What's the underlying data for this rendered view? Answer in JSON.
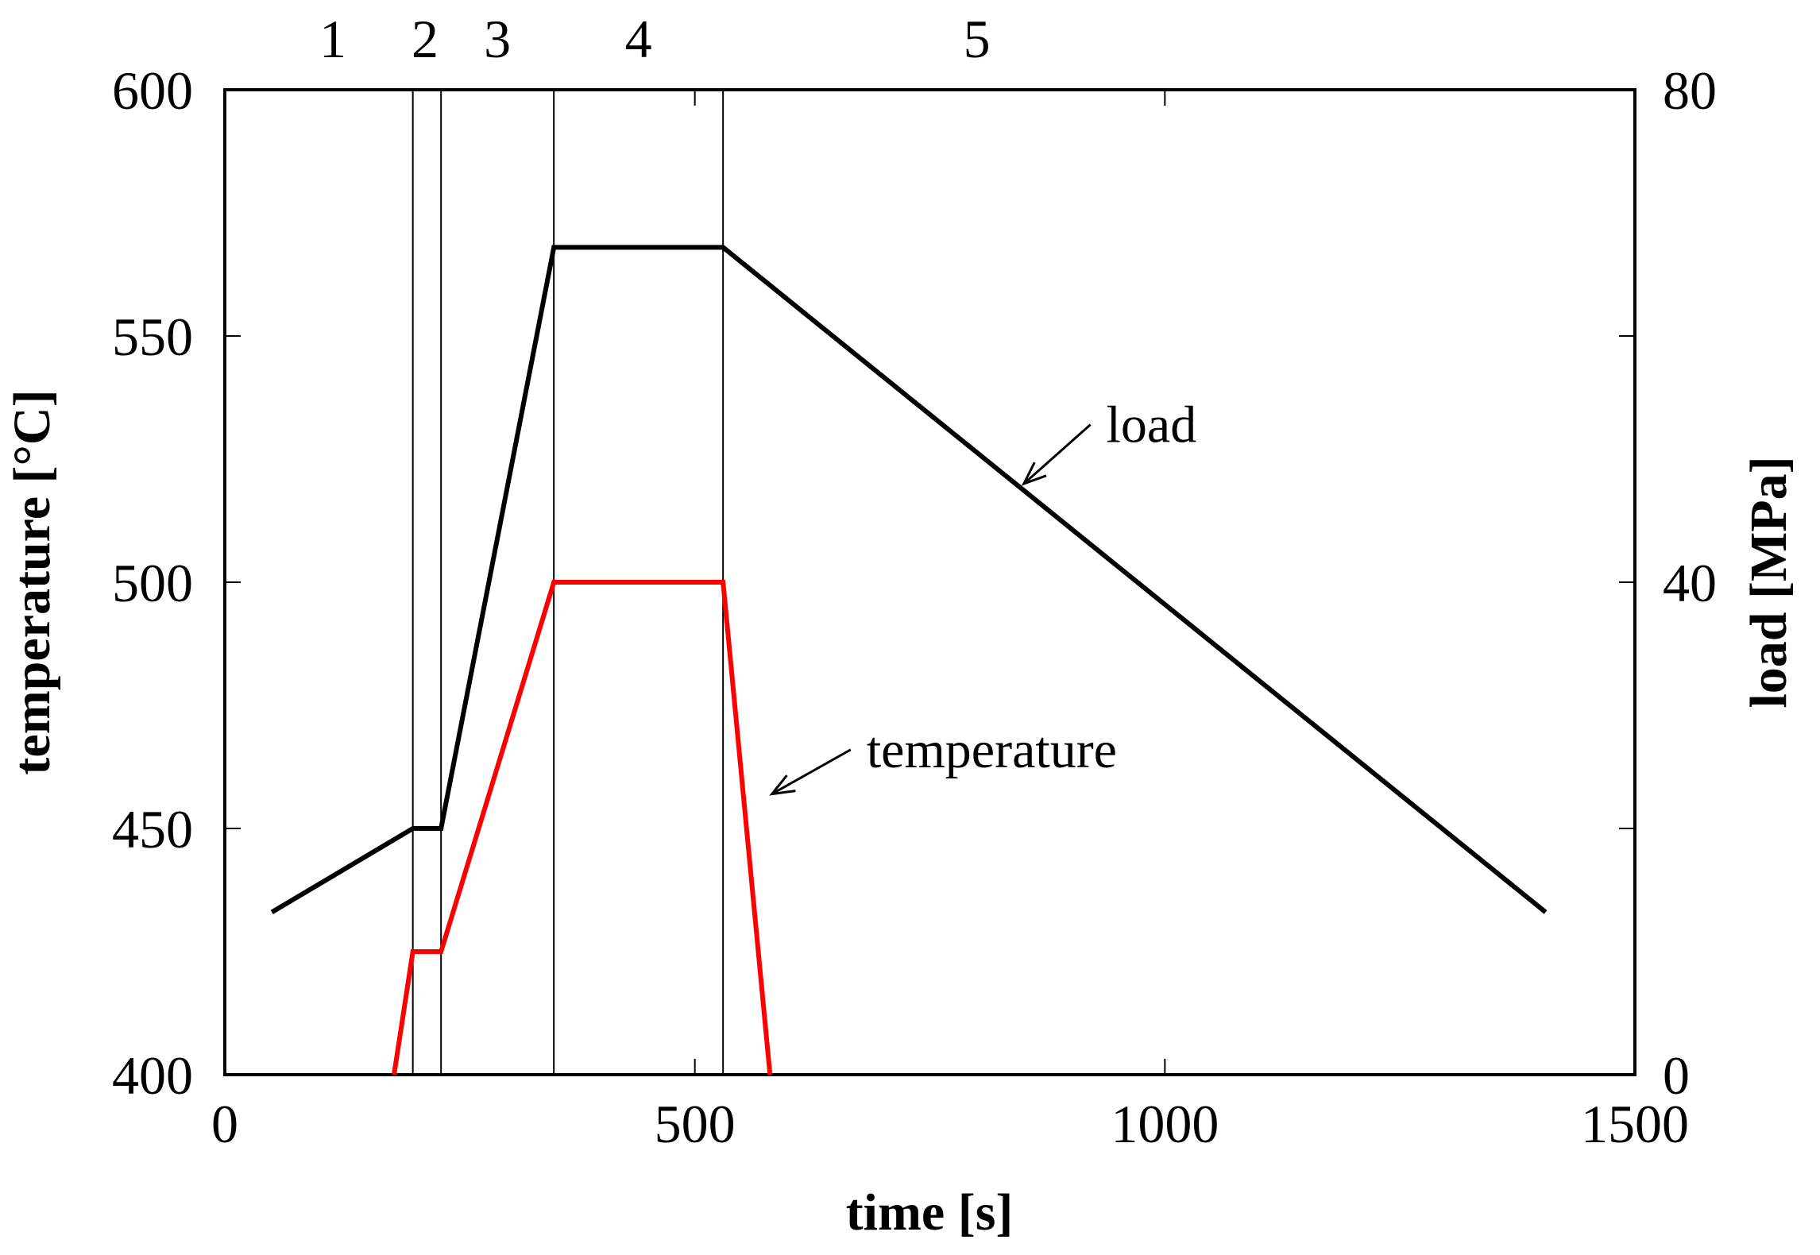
{
  "chart_data": {
    "type": "line",
    "title": "",
    "xlabel": "time [s]",
    "ylabel_left": "temperature [°C]",
    "ylabel_right": "load [MPa]",
    "xlim": [
      0,
      1500
    ],
    "ylim_left": [
      400,
      600
    ],
    "ylim_right": [
      0,
      80
    ],
    "x_ticks": [
      0,
      500,
      1000,
      1500
    ],
    "x_tick_labels": [
      "0",
      "500",
      "1000",
      "1500"
    ],
    "y_left_ticks": [
      400,
      450,
      500,
      550,
      600
    ],
    "y_left_tick_labels": [
      "400",
      "450",
      "500",
      "550",
      "600"
    ],
    "y_right_ticks": [
      0,
      40,
      80
    ],
    "y_right_tick_labels": [
      "0",
      "40",
      "80"
    ],
    "grid": false,
    "stage_boundaries": [
      200,
      230,
      350,
      530
    ],
    "stages": [
      {
        "label": "1",
        "x": 115
      },
      {
        "label": "2",
        "x": 213
      },
      {
        "label": "3",
        "x": 290
      },
      {
        "label": "4",
        "x": 440
      },
      {
        "label": "5",
        "x": 800
      }
    ],
    "series": [
      {
        "name": "load",
        "color": "#000000",
        "axis": "right",
        "points": [
          [
            50,
            13.2
          ],
          [
            200,
            20
          ],
          [
            230,
            20
          ],
          [
            350,
            67.2
          ],
          [
            530,
            67.2
          ],
          [
            1405,
            13.2
          ]
        ]
      },
      {
        "name": "temperature",
        "color": "#ff0000",
        "axis": "left",
        "points": [
          [
            180,
            400
          ],
          [
            200,
            425
          ],
          [
            230,
            425
          ],
          [
            350,
            500
          ],
          [
            530,
            500
          ],
          [
            580,
            400
          ]
        ]
      }
    ],
    "annotations": [
      {
        "text": "load",
        "series": "load",
        "text_x": 925,
        "text_y_left": 532,
        "arrow_to": [
          850,
          520
        ]
      },
      {
        "text": "temperature",
        "series": "temperature",
        "text_x": 670,
        "text_y_left": 466,
        "arrow_to": [
          582,
          457
        ]
      }
    ]
  }
}
